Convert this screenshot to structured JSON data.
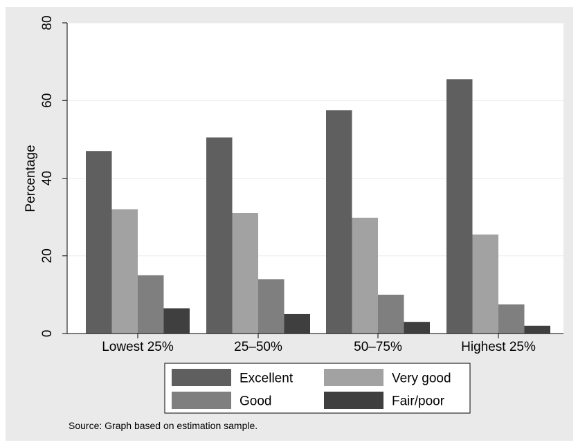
{
  "chart_data": {
    "type": "bar",
    "title": "",
    "xlabel": "",
    "ylabel": "Percentage",
    "ylim": [
      0,
      80
    ],
    "yticks": [
      0,
      20,
      40,
      60,
      80
    ],
    "categories": [
      "Lowest 25%",
      "25–50%",
      "50–75%",
      "Highest 25%"
    ],
    "series": [
      {
        "name": "Excellent",
        "values": [
          47,
          50.5,
          57.5,
          65.5
        ],
        "color": "#5f5f5f"
      },
      {
        "name": "Very good",
        "values": [
          32,
          31,
          29.8,
          25.5
        ],
        "color": "#a2a2a2"
      },
      {
        "name": "Good",
        "values": [
          15,
          14,
          10,
          7.5
        ],
        "color": "#7f7f7f"
      },
      {
        "name": "Fair/poor",
        "values": [
          6.5,
          5,
          3,
          2
        ],
        "color": "#3f3f3f"
      }
    ],
    "grid": true,
    "legend_position": "bottom",
    "note": "Source: Graph based on estimation sample.",
    "colors": {
      "outer_background": "#eaeaea",
      "plot_background": "#ffffff",
      "gridline": "#eaeaea"
    }
  }
}
